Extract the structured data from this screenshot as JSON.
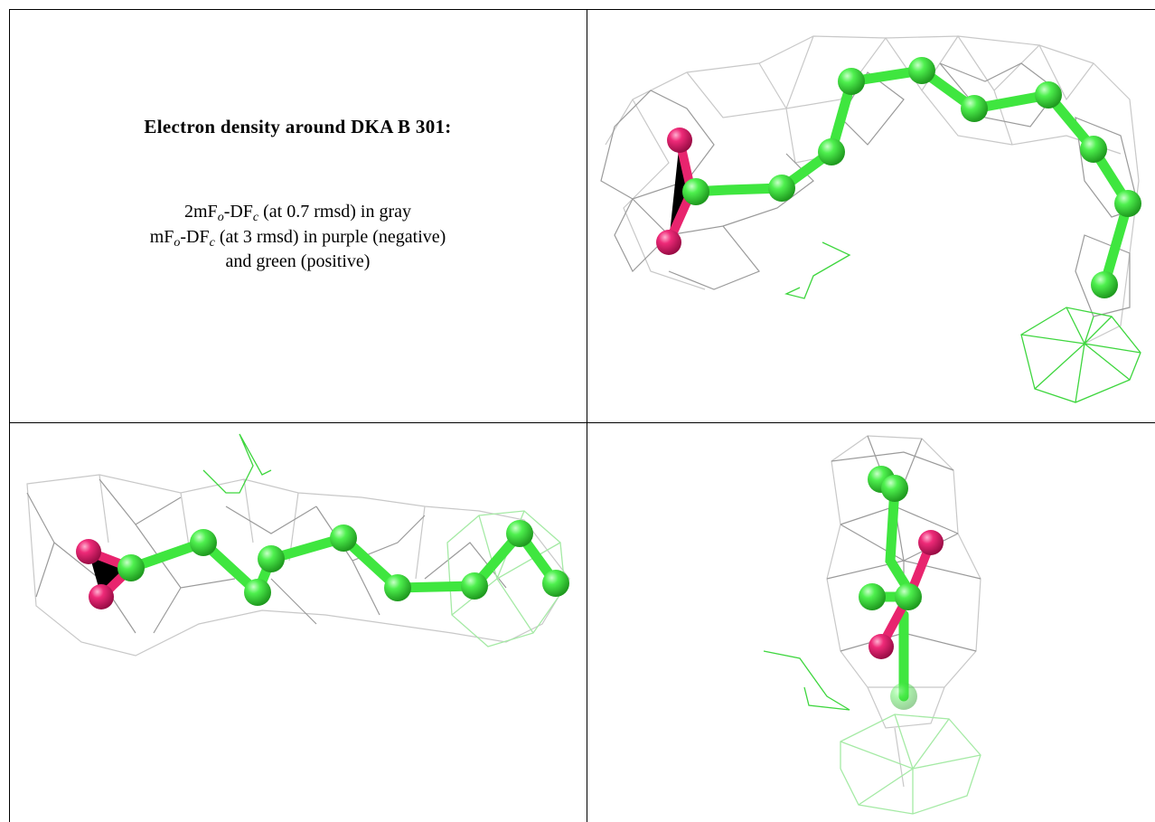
{
  "caption": {
    "title": "Electron density around DKA B 301:",
    "lines": [
      [
        "2mF",
        "o",
        "-DF",
        "c",
        " (at 0.7 rmsd) in gray"
      ],
      [
        "mF",
        "o",
        "-DF",
        "c",
        " (at 3 rmsd) in purple (negative)"
      ],
      [
        "and green (positive)"
      ]
    ]
  }
}
